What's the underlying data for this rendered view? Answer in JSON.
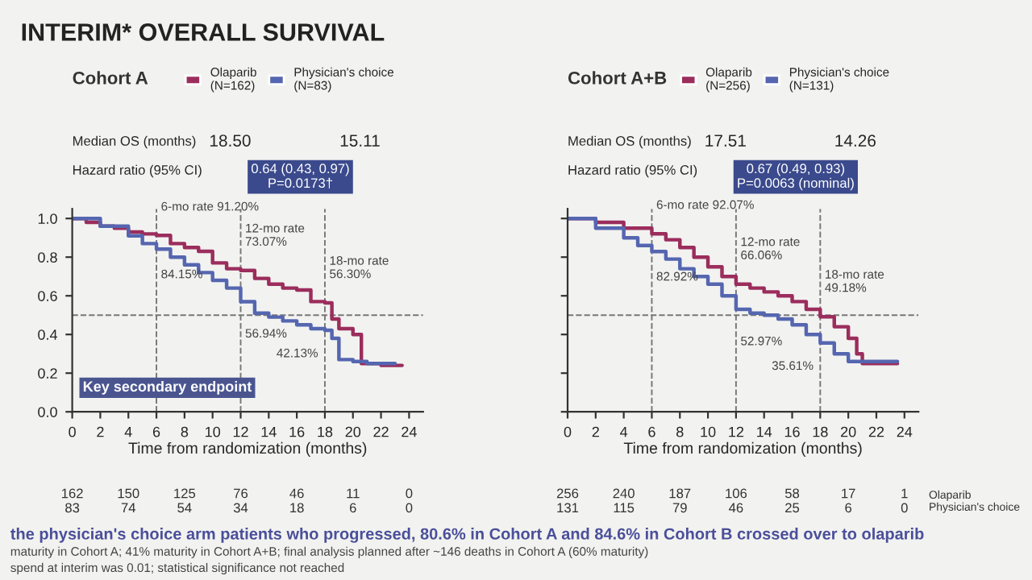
{
  "chart_data": [
    {
      "type": "step",
      "title": "INTERIM* OVERALL SURVIVAL",
      "subtitle": "Cohort A",
      "xlabel": "Time from randomization (months)",
      "series": [
        {
          "name": "Olaparib\n(N=162)",
          "color": "#9b2d5c",
          "x": [
            0,
            1,
            2,
            3,
            4,
            5,
            6,
            7,
            8,
            9,
            10,
            11,
            12,
            13,
            14,
            15,
            16,
            17,
            18,
            18.5,
            19,
            20,
            20.6,
            22,
            23.5
          ],
          "values": [
            1.0,
            0.98,
            0.96,
            0.95,
            0.93,
            0.92,
            0.912,
            0.87,
            0.85,
            0.83,
            0.77,
            0.74,
            0.7307,
            0.69,
            0.66,
            0.64,
            0.63,
            0.57,
            0.563,
            0.48,
            0.43,
            0.4,
            0.25,
            0.24,
            0.24
          ]
        },
        {
          "name": "Physician's choice\n(N=83)",
          "color": "#5566b0",
          "x": [
            0,
            2,
            4,
            5,
            6,
            7,
            8,
            9,
            10,
            11,
            12,
            13,
            14,
            15,
            16,
            17,
            18,
            18.5,
            19,
            20,
            21,
            23
          ],
          "values": [
            1.0,
            0.96,
            0.91,
            0.87,
            0.8415,
            0.8,
            0.76,
            0.72,
            0.68,
            0.64,
            0.5694,
            0.51,
            0.49,
            0.47,
            0.45,
            0.43,
            0.4213,
            0.38,
            0.27,
            0.26,
            0.25,
            0.25
          ]
        }
      ],
      "xlim": [
        0,
        25
      ],
      "xticks": [
        0,
        2,
        4,
        6,
        8,
        10,
        12,
        14,
        16,
        18,
        20,
        22,
        24
      ],
      "ylim": [
        0,
        1.05
      ],
      "yticks": [
        {
          "value": 0,
          "label": "0.0"
        },
        0.2,
        0.4,
        0.6,
        0.8,
        {
          "value": 1,
          "label": "1.0"
        }
      ],
      "ref_lines": [
        {
          "axis": "y",
          "value": 0.5,
          "color": "#777777",
          "line_style": "dashed"
        },
        {
          "axis": "x",
          "value": 6,
          "color": "#777777",
          "line_style": "dashed"
        },
        {
          "axis": "x",
          "value": 12,
          "color": "#777777",
          "line_style": "dashed"
        },
        {
          "axis": "x",
          "value": 18,
          "color": "#777777",
          "line_style": "dashed"
        }
      ],
      "legend": "top",
      "grid": false,
      "marker": "none",
      "line_style": "solid",
      "annotations": [
        "Median OS (months)",
        "18.50",
        "15.11",
        "Hazard ratio (95% CI)",
        "0.64 (0.43, 0.97)\nP=0.0173†",
        "162\n83",
        "150\n74",
        "125\n54",
        "76\n34",
        "46\n18",
        "11\n6",
        "0\n0",
        "Key secondary endpoint",
        "the physician's choice arm patients who progressed, 80.6% in Cohort A and 84.6% in Cohort B crossed over to olaparib",
        "maturity in Cohort A; 41% maturity in Cohort A+B; final analysis planned after ~146 deaths in Cohort A (60% maturity)",
        "spend at interim was 0.01; statistical significance not reached",
        {
          "text": "6-mo rate 91.20%",
          "x": 6,
          "y": 0.912
        },
        {
          "text": "84.15%",
          "x": 6,
          "y": 0.8415
        },
        {
          "text": "12-mo rate\n73.07%",
          "x": 12,
          "y": 0.7307
        },
        {
          "text": "56.94%",
          "x": 12,
          "y": 0.5694
        },
        {
          "text": "18-mo rate\n56.30%",
          "x": 18,
          "y": 0.563
        },
        {
          "text": "42.13%",
          "x": 18,
          "y": 0.4213
        }
      ]
    },
    {
      "type": "step",
      "title": "Cohort A+B",
      "xlabel": "Time from randomization (months)",
      "series": [
        {
          "name": "Olaparib\n(N=256)",
          "color": "#9b2d5c",
          "x": [
            0,
            2,
            4,
            6,
            7,
            8,
            9,
            10,
            11,
            12,
            13,
            14,
            15,
            16,
            17,
            18,
            19,
            20,
            20.6,
            21,
            23.5
          ],
          "values": [
            1.0,
            0.98,
            0.95,
            0.9207,
            0.89,
            0.85,
            0.8,
            0.75,
            0.7,
            0.6606,
            0.64,
            0.62,
            0.6,
            0.57,
            0.53,
            0.4918,
            0.44,
            0.38,
            0.3,
            0.25,
            0.25
          ]
        },
        {
          "name": "Physician's choice\n(N=131)",
          "color": "#5566b0",
          "x": [
            0,
            2,
            4,
            5,
            6,
            7,
            8,
            9,
            10,
            11,
            12,
            13,
            14,
            15,
            16,
            17,
            18,
            19,
            20,
            23.5
          ],
          "values": [
            1.0,
            0.95,
            0.9,
            0.86,
            0.8292,
            0.79,
            0.74,
            0.7,
            0.66,
            0.6,
            0.5297,
            0.51,
            0.5,
            0.48,
            0.45,
            0.4,
            0.3561,
            0.3,
            0.26,
            0.26
          ]
        }
      ],
      "xlim": [
        0,
        25
      ],
      "xticks": [
        0,
        2,
        4,
        6,
        8,
        10,
        12,
        14,
        16,
        18,
        20,
        22,
        24
      ],
      "ylim": [
        0,
        1.05
      ],
      "yticks": [
        0,
        0.2,
        0.4,
        0.6,
        0.8,
        1
      ],
      "tick_labels": "x",
      "ref_lines": [
        {
          "axis": "y",
          "value": 0.5,
          "color": "#777777",
          "line_style": "dashed"
        },
        {
          "axis": "x",
          "value": 6,
          "color": "#777777",
          "line_style": "dashed"
        },
        {
          "axis": "x",
          "value": 12,
          "color": "#777777",
          "line_style": "dashed"
        },
        {
          "axis": "x",
          "value": 18,
          "color": "#777777",
          "line_style": "dashed"
        }
      ],
      "legend": "top",
      "grid": false,
      "marker": "none",
      "line_style": "solid",
      "annotations": [
        "Median OS (months)",
        "17.51",
        "14.26",
        "Hazard ratio (95% CI)",
        "0.67 (0.49, 0.93)\nP=0.0063 (nominal)",
        "256\n131",
        "240\n115",
        "187\n79",
        "106\n46",
        "58\n25",
        "17\n6",
        "1\n0",
        "Olaparib\nPhysician's choice",
        {
          "text": "6-mo rate 92.07%",
          "x": 6,
          "y": 0.9207
        },
        {
          "text": "82.92%",
          "x": 6,
          "y": 0.8292
        },
        {
          "text": "12-mo rate\n66.06%",
          "x": 12,
          "y": 0.6606
        },
        {
          "text": "52.97%",
          "x": 12,
          "y": 0.5297
        },
        {
          "text": "18-mo rate\n49.18%",
          "x": 18,
          "y": 0.4918
        },
        {
          "text": "35.61%",
          "x": 18,
          "y": 0.3561
        }
      ]
    }
  ]
}
